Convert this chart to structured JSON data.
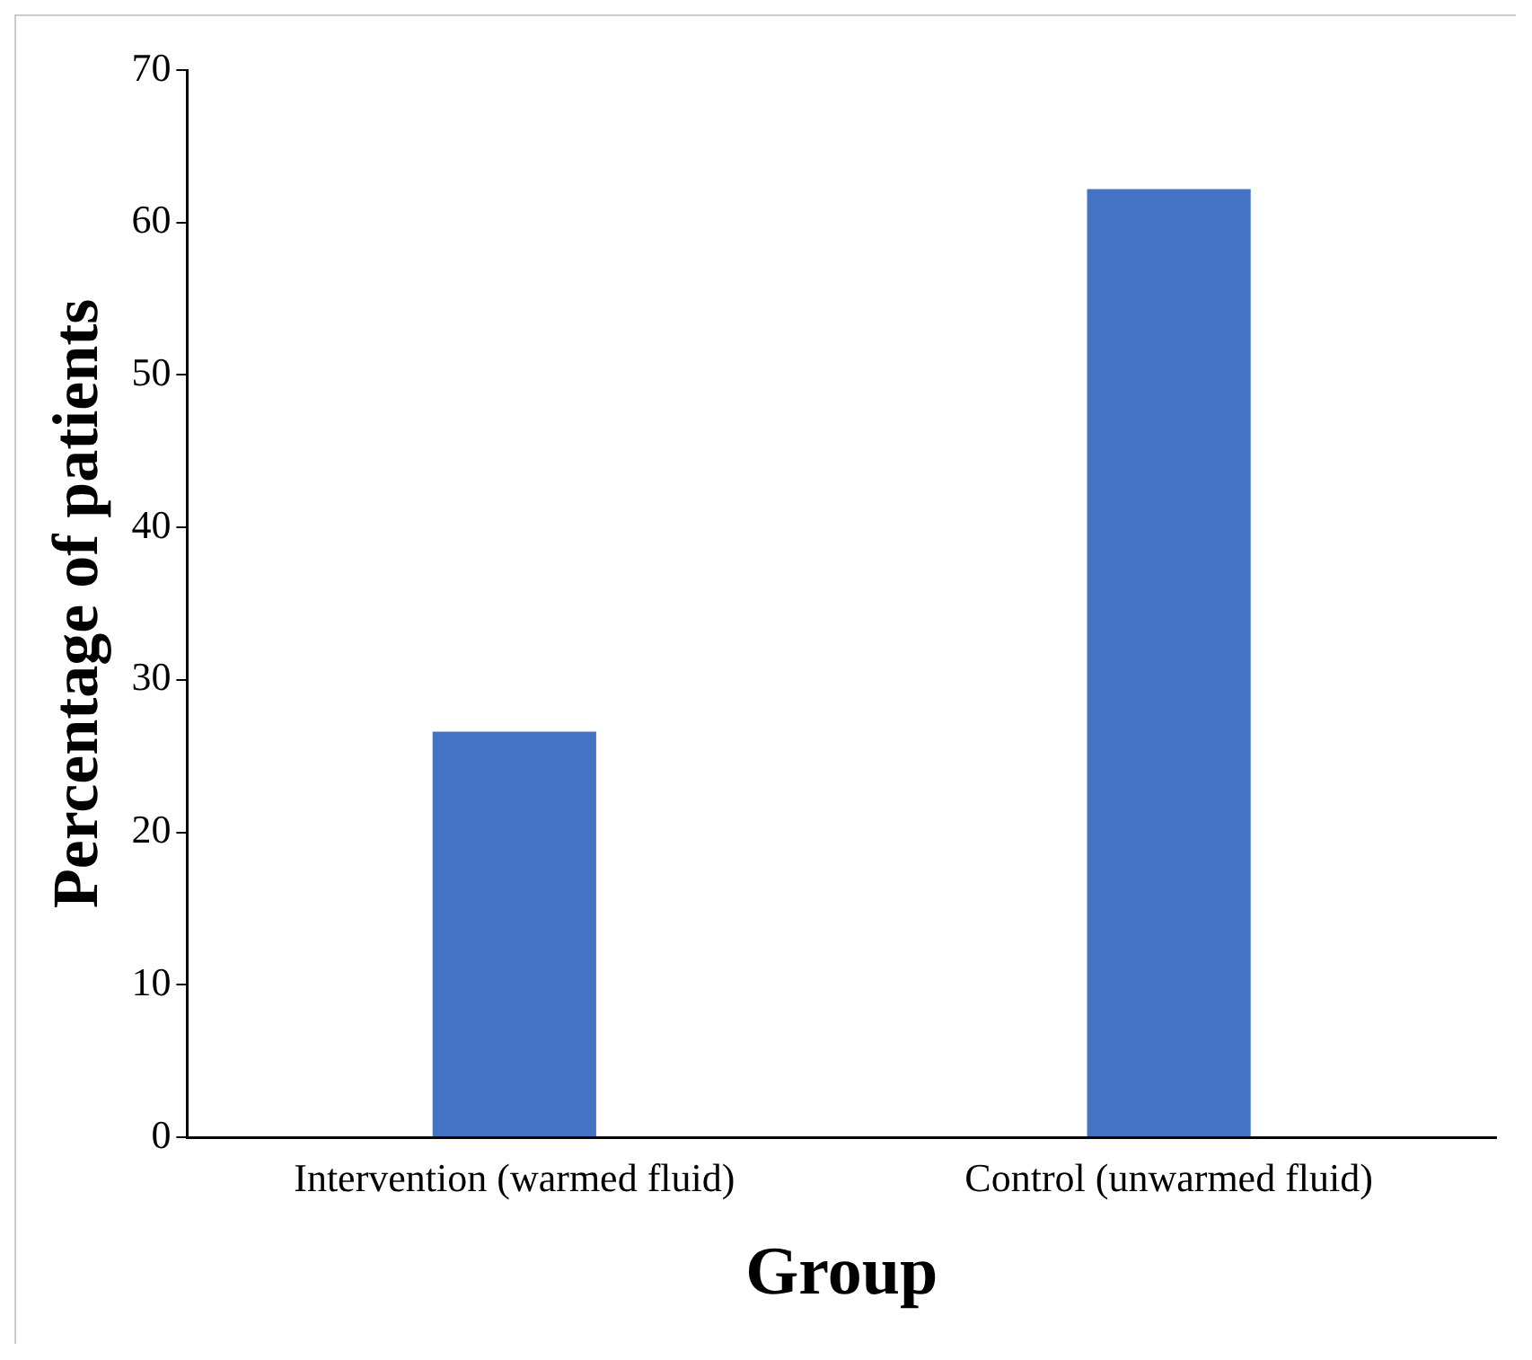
{
  "chart_data": {
    "type": "bar",
    "xlabel": "Group",
    "ylabel": "Percentage of patients",
    "categories": [
      "Intervention (warmed fluid)",
      "Control (unwarmed fluid)"
    ],
    "values": [
      26.6,
      62.2
    ],
    "color": "#4472c4",
    "ylim": [
      0,
      70
    ],
    "yticks": [
      0,
      10,
      20,
      30,
      40,
      50,
      60,
      70
    ],
    "grid": false,
    "legend": false
  }
}
